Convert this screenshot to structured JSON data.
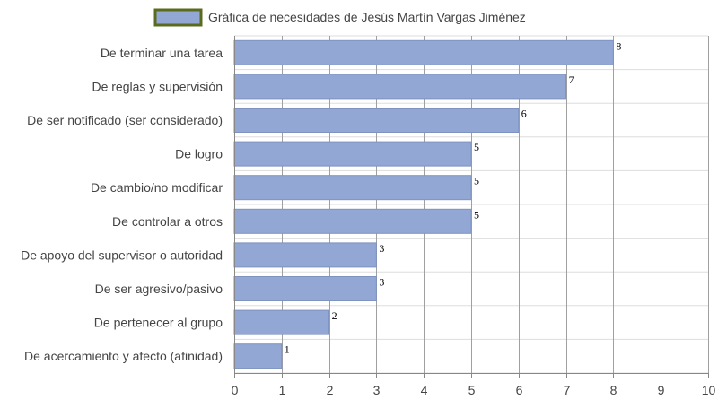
{
  "chart_data": {
    "type": "bar",
    "orientation": "horizontal",
    "categories": [
      "De terminar una tarea",
      "De reglas y supervisión",
      "De ser notificado (ser considerado)",
      "De logro",
      "De cambio/no modificar",
      "De controlar a otros",
      "De apoyo del supervisor o autoridad",
      "De ser agresivo/pasivo",
      "De pertenecer al grupo",
      "De acercamiento y afecto (afinidad)"
    ],
    "series": [
      {
        "name": "Gráfica de necesidades de Jesús Martín Vargas Jiménez",
        "values": [
          8,
          7,
          6,
          5,
          5,
          5,
          3,
          3,
          2,
          1
        ]
      }
    ],
    "xlim": [
      0,
      10
    ],
    "x_ticks": [
      "0",
      "1",
      "2",
      "3",
      "4",
      "5",
      "6",
      "7",
      "8",
      "9",
      "10"
    ],
    "grid": true,
    "legend_position": "top",
    "data_labels": true,
    "colors": {
      "bar_fill": "#93a7d4",
      "bar_stroke": "#7f93c0",
      "legend_border": "#5a6b1e",
      "grid": "#a0a0a0",
      "grid_minor": "#dddddd",
      "axis": "#888888"
    }
  }
}
